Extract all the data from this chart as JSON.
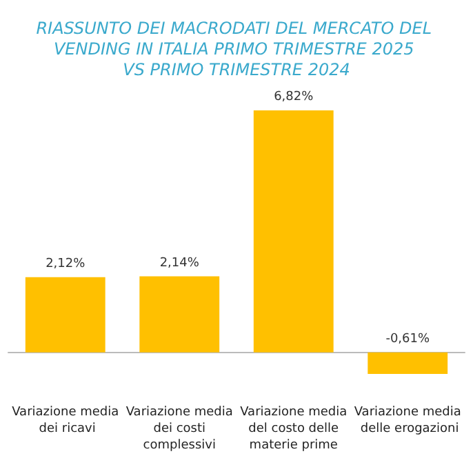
{
  "chart_data": {
    "type": "bar",
    "title": "RIASSUNTO DEI MACRODATI DEL MERCATO DEL VENDING IN ITALIA PRIMO TRIMESTRE 2025 VS PRIMO TRIMESTRE 2024",
    "categories": [
      "Variazione media dei ricavi",
      "Variazione media dei costi complessivi",
      "Variazione media del costo delle materie prime",
      "Variazione media delle erogazioni"
    ],
    "values": [
      2.12,
      2.14,
      6.82,
      -0.61
    ],
    "value_labels": [
      "2,12%",
      "2,14%",
      "6,82%",
      "-0,61%"
    ],
    "color": "#ffc000"
  }
}
